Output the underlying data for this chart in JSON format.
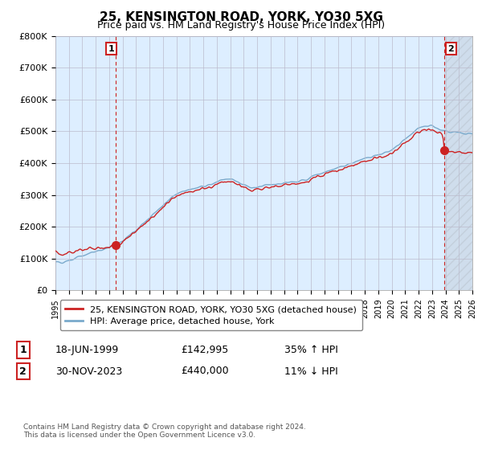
{
  "title": "25, KENSINGTON ROAD, YORK, YO30 5XG",
  "subtitle": "Price paid vs. HM Land Registry's House Price Index (HPI)",
  "ylim": [
    0,
    800000
  ],
  "yticks": [
    0,
    100000,
    200000,
    300000,
    400000,
    500000,
    600000,
    700000,
    800000
  ],
  "ytick_labels": [
    "£0",
    "£100K",
    "£200K",
    "£300K",
    "£400K",
    "£500K",
    "£600K",
    "£700K",
    "£800K"
  ],
  "legend_entries": [
    "25, KENSINGTON ROAD, YORK, YO30 5XG (detached house)",
    "HPI: Average price, detached house, York"
  ],
  "line_color_red": "#cc2222",
  "line_color_blue": "#7aaacc",
  "plot_bg_color": "#ddeeff",
  "sale1_year": 1999.46,
  "sale1_price": 142995,
  "sale2_year": 2023.91,
  "sale2_price": 440000,
  "annotation1_label": "1",
  "annotation1_date": "18-JUN-1999",
  "annotation1_price": "£142,995",
  "annotation1_hpi": "35% ↑ HPI",
  "annotation2_label": "2",
  "annotation2_date": "30-NOV-2023",
  "annotation2_price": "£440,000",
  "annotation2_hpi": "11% ↓ HPI",
  "footnote": "Contains HM Land Registry data © Crown copyright and database right 2024.\nThis data is licensed under the Open Government Licence v3.0.",
  "background_color": "#ffffff",
  "grid_color": "#bbbbcc",
  "title_fontsize": 11,
  "subtitle_fontsize": 9
}
